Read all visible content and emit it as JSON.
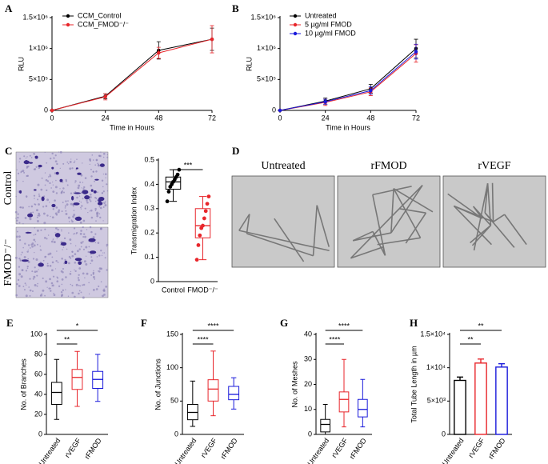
{
  "chart_data": [
    {
      "panel": "A",
      "type": "line",
      "ylabel": "RLU",
      "xlabel": "Time in Hours",
      "x": [
        0,
        24,
        48,
        72
      ],
      "xlim": [
        0,
        72
      ],
      "xticks": [
        0,
        24,
        48,
        72
      ],
      "ylim": [
        0,
        1500000
      ],
      "yticks": [
        0,
        {
          "value": 500000,
          "label": "5×10⁵"
        },
        {
          "value": 1000000,
          "label": "1×10⁶"
        },
        {
          "value": 1500000,
          "label": "1.5×10⁶"
        }
      ],
      "legend": "upper left",
      "series": [
        {
          "name": "CCM_Control",
          "color": "#000000",
          "values": [
            0,
            230000,
            970000,
            1150000
          ],
          "errors": [
            0,
            40000,
            140000,
            180000
          ]
        },
        {
          "name": "CCM_FMOD⁻/⁻",
          "color": "#e8262b",
          "values": [
            0,
            220000,
            930000,
            1150000
          ],
          "errors": [
            0,
            50000,
            90000,
            220000
          ]
        }
      ]
    },
    {
      "panel": "B",
      "type": "line",
      "ylabel": "RLU",
      "xlabel": "Time in Hours",
      "x": [
        0,
        24,
        48,
        72
      ],
      "xlim": [
        0,
        72
      ],
      "xticks": [
        0,
        24,
        48,
        72
      ],
      "ylim": [
        0,
        1500000
      ],
      "yticks": [
        0,
        {
          "value": 500000,
          "label": "5×10⁵"
        },
        {
          "value": 1000000,
          "label": "1×10⁶"
        },
        {
          "value": 1500000,
          "label": "1.5×10⁶"
        }
      ],
      "legend": "upper left",
      "series": [
        {
          "name": "Untreated",
          "color": "#000000",
          "values": [
            0,
            150000,
            350000,
            1000000
          ],
          "errors": [
            0,
            50000,
            70000,
            150000
          ]
        },
        {
          "name": "5 µg/ml FMOD",
          "color": "#e8262b",
          "values": [
            0,
            130000,
            300000,
            920000
          ],
          "errors": [
            0,
            50000,
            60000,
            140000
          ]
        },
        {
          "name": "10 µg/ml FMOD",
          "color": "#1a1adb",
          "values": [
            0,
            140000,
            320000,
            950000
          ],
          "errors": [
            0,
            40000,
            60000,
            120000
          ]
        }
      ]
    },
    {
      "panel": "C",
      "type": "box",
      "ylabel": "Transmigration Index",
      "categories": [
        "Control",
        "FMOD⁻/⁻"
      ],
      "ylim": [
        0,
        0.5
      ],
      "yticks": [
        0,
        0.1,
        0.2,
        0.3,
        0.4,
        0.5
      ],
      "colors": [
        "#000000",
        "#e8262b"
      ],
      "values": [
        {
          "min": 0.33,
          "q1": 0.38,
          "median": 0.41,
          "q3": 0.43,
          "max": 0.46
        },
        {
          "min": 0.09,
          "q1": 0.18,
          "median": 0.23,
          "q3": 0.3,
          "max": 0.35
        }
      ],
      "points": [
        [
          0.33,
          0.37,
          0.39,
          0.4,
          0.41,
          0.42,
          0.43,
          0.44,
          0.46
        ],
        [
          0.09,
          0.15,
          0.19,
          0.22,
          0.23,
          0.26,
          0.29,
          0.32,
          0.35
        ]
      ],
      "significance": [
        "***"
      ]
    },
    {
      "panel": "E",
      "type": "box",
      "ylabel": "No. of Branches",
      "categories": [
        "Untreated",
        "rVEGF",
        "rFMOD"
      ],
      "ylim": [
        0,
        100
      ],
      "yticks": [
        0,
        20,
        40,
        60,
        80,
        100
      ],
      "colors": [
        "#000000",
        "#e8262b",
        "#1a1adb"
      ],
      "values": [
        {
          "min": 15,
          "q1": 30,
          "median": 42,
          "q3": 52,
          "max": 75
        },
        {
          "min": 28,
          "q1": 45,
          "median": 57,
          "q3": 65,
          "max": 83
        },
        {
          "min": 33,
          "q1": 46,
          "median": 55,
          "q3": 63,
          "max": 80
        }
      ],
      "significance": [
        "**",
        "*"
      ]
    },
    {
      "panel": "F",
      "type": "box",
      "ylabel": "No. of Junctions",
      "categories": [
        "Untreated",
        "rVEGF",
        "rFMOD"
      ],
      "ylim": [
        0,
        150
      ],
      "yticks": [
        0,
        50,
        100,
        150
      ],
      "colors": [
        "#000000",
        "#e8262b",
        "#1a1adb"
      ],
      "values": [
        {
          "min": 12,
          "q1": 22,
          "median": 33,
          "q3": 45,
          "max": 80
        },
        {
          "min": 28,
          "q1": 50,
          "median": 68,
          "q3": 82,
          "max": 125
        },
        {
          "min": 38,
          "q1": 52,
          "median": 60,
          "q3": 72,
          "max": 85
        }
      ],
      "significance": [
        "****",
        "****"
      ]
    },
    {
      "panel": "G",
      "type": "box",
      "ylabel": "No. of Meshes",
      "categories": [
        "Untreated",
        "rVEGF",
        "rFMOD"
      ],
      "ylim": [
        0,
        40
      ],
      "yticks": [
        0,
        10,
        20,
        30,
        40
      ],
      "colors": [
        "#000000",
        "#e8262b",
        "#1a1adb"
      ],
      "values": [
        {
          "min": 0,
          "q1": 1,
          "median": 4,
          "q3": 6,
          "max": 12
        },
        {
          "min": 3,
          "q1": 9,
          "median": 14,
          "q3": 17,
          "max": 30
        },
        {
          "min": 3,
          "q1": 7,
          "median": 10,
          "q3": 14,
          "max": 22
        }
      ],
      "significance": [
        "****",
        "****"
      ]
    },
    {
      "panel": "H",
      "type": "bar",
      "ylabel": "Total Tube Length in µm",
      "categories": [
        "Untreated",
        "rVEGF",
        "rFMOD"
      ],
      "ylim": [
        0,
        15000
      ],
      "yticks": [
        0,
        {
          "value": 5000,
          "label": "5×10³"
        },
        {
          "value": 10000,
          "label": "1×10⁴"
        },
        {
          "value": 15000,
          "label": "1.5×10⁴"
        }
      ],
      "colors": [
        "#000000",
        "#e8262b",
        "#1a1adb"
      ],
      "values": [
        8100,
        10700,
        10100
      ],
      "errors": [
        500,
        600,
        500
      ],
      "significance": [
        "**",
        "**"
      ]
    }
  ],
  "image_panels": {
    "C": {
      "rows": [
        "Control",
        "FMOD⁻/⁻"
      ]
    },
    "D": {
      "panel": "D",
      "titles": [
        "Untreated",
        "rFMOD",
        "rVEGF"
      ]
    }
  }
}
